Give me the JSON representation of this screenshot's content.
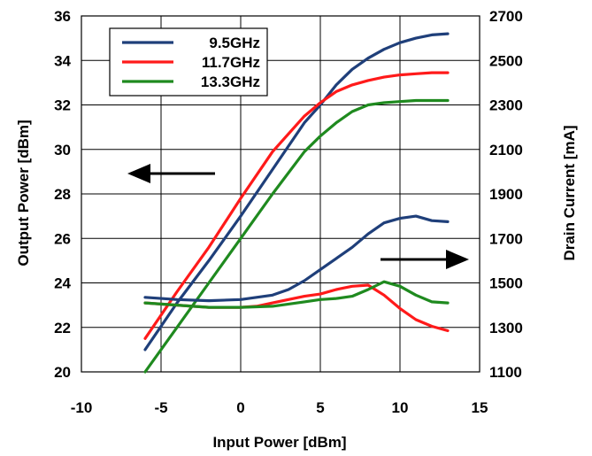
{
  "chart_data": {
    "type": "line",
    "xlabel": "Input Power [dBm]",
    "ylabel_left": "Output Power [dBm]",
    "ylabel_right": "Drain Current [mA]",
    "xlim": [
      -10,
      15
    ],
    "ylim_left": [
      20,
      36
    ],
    "ylim_right": [
      1100,
      2700
    ],
    "x_ticks": [
      "-10",
      "-5",
      "0",
      "5",
      "10",
      "15"
    ],
    "y_ticks_left": [
      "20",
      "22",
      "24",
      "26",
      "28",
      "30",
      "32",
      "34",
      "36"
    ],
    "y_ticks_right": [
      "1100",
      "1300",
      "1500",
      "1700",
      "1900",
      "2100",
      "2300",
      "2500",
      "2700"
    ],
    "grid": true,
    "legend_position": "top-left",
    "series": [
      {
        "name": "9.5GHz",
        "color": "#1F3F7A",
        "axis": "left",
        "metric": "Output Power",
        "x": [
          -6,
          -4,
          -2,
          0,
          2,
          4,
          5,
          6,
          7,
          8,
          9,
          10,
          11,
          12,
          13
        ],
        "y": [
          21.0,
          23.1,
          25.0,
          27.0,
          29.1,
          31.2,
          32.0,
          32.9,
          33.6,
          34.1,
          34.5,
          34.8,
          35.0,
          35.15,
          35.2
        ]
      },
      {
        "name": "11.7GHz",
        "color": "#FF1A1A",
        "axis": "left",
        "metric": "Output Power",
        "x": [
          -6,
          -4,
          -2,
          0,
          2,
          4,
          5,
          6,
          7,
          8,
          9,
          10,
          11,
          12,
          13
        ],
        "y": [
          21.5,
          23.6,
          25.6,
          27.8,
          29.9,
          31.5,
          32.1,
          32.6,
          32.9,
          33.1,
          33.25,
          33.35,
          33.4,
          33.45,
          33.45
        ]
      },
      {
        "name": "13.3GHz",
        "color": "#1F8A1F",
        "axis": "left",
        "metric": "Output Power",
        "x": [
          -6,
          -4,
          -2,
          0,
          2,
          4,
          5,
          6,
          7,
          8,
          9,
          10,
          11,
          12,
          13
        ],
        "y": [
          20.0,
          22.0,
          24.0,
          26.0,
          28.0,
          29.9,
          30.6,
          31.2,
          31.7,
          32.0,
          32.1,
          32.15,
          32.2,
          32.2,
          32.2
        ]
      },
      {
        "name": "9.5GHz",
        "color": "#1F3F7A",
        "axis": "right",
        "metric": "Drain Current",
        "x": [
          -6,
          -4,
          -2,
          0,
          2,
          3,
          4,
          5,
          6,
          7,
          8,
          9,
          10,
          11,
          12,
          13
        ],
        "y": [
          1435,
          1425,
          1420,
          1425,
          1445,
          1470,
          1510,
          1560,
          1610,
          1660,
          1720,
          1770,
          1790,
          1800,
          1780,
          1775
        ]
      },
      {
        "name": "11.7GHz",
        "color": "#FF1A1A",
        "axis": "right",
        "metric": "Drain Current",
        "x": [
          -6,
          -4,
          -2,
          0,
          1,
          2,
          3,
          4,
          5,
          6,
          7,
          8,
          9,
          10,
          11,
          12,
          13
        ],
        "y": [
          1410,
          1400,
          1390,
          1390,
          1395,
          1410,
          1425,
          1440,
          1450,
          1470,
          1485,
          1490,
          1445,
          1385,
          1335,
          1305,
          1285
        ]
      },
      {
        "name": "13.3GHz",
        "color": "#1F8A1F",
        "axis": "right",
        "metric": "Drain Current",
        "x": [
          -6,
          -4,
          -2,
          0,
          2,
          4,
          5,
          6,
          7,
          8,
          9,
          10,
          11,
          12,
          13
        ],
        "y": [
          1410,
          1400,
          1390,
          1390,
          1395,
          1415,
          1425,
          1430,
          1440,
          1470,
          1505,
          1485,
          1445,
          1415,
          1410
        ]
      }
    ],
    "legend": [
      "9.5GHz",
      "11.7GHz",
      "13.3GHz"
    ],
    "annotations": [
      {
        "type": "arrow",
        "direction": "left",
        "meaning": "left axis (Output Power)"
      },
      {
        "type": "arrow",
        "direction": "right",
        "meaning": "right axis (Drain Current)"
      }
    ]
  }
}
